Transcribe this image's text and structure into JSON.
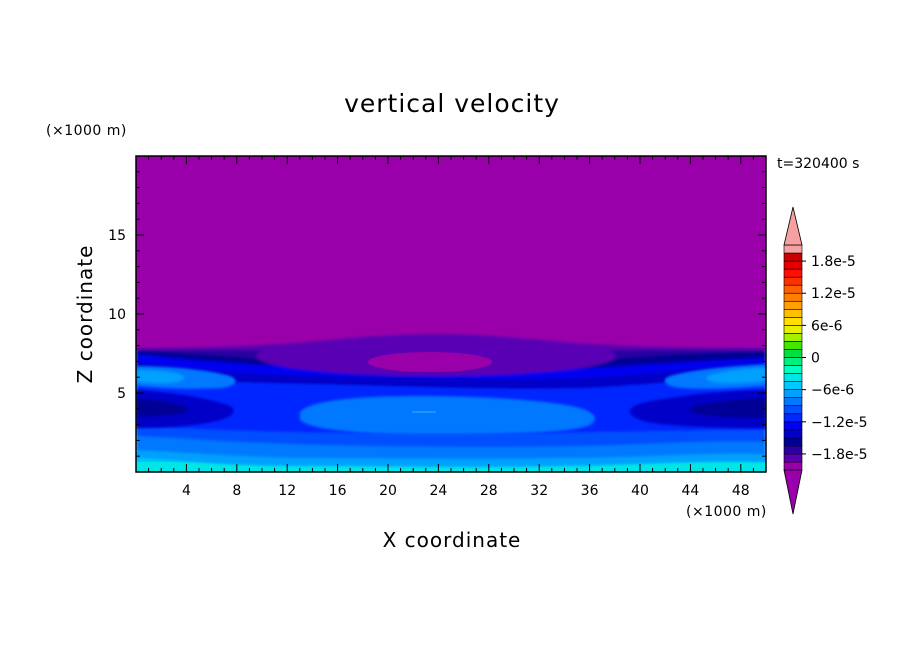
{
  "chart_data": {
    "type": "heatmap",
    "title": "vertical velocity",
    "xlabel": "X coordinate",
    "ylabel": "Z coordinate",
    "x_unit": "(×1000 m)",
    "y_unit": "(×1000 m)",
    "time_label": "t=320400 s",
    "xlim": [
      0,
      50
    ],
    "ylim": [
      0,
      20
    ],
    "x_ticks": [
      4,
      8,
      12,
      16,
      20,
      24,
      28,
      32,
      36,
      40,
      44,
      48
    ],
    "x_tick_labels": [
      "4",
      "8",
      "12",
      "16",
      "20",
      "24",
      "28",
      "32",
      "36",
      "40",
      "44",
      "48"
    ],
    "y_ticks": [
      5,
      10,
      15
    ],
    "y_tick_labels": [
      "5",
      "10",
      "15"
    ],
    "colorbar": {
      "levels": [
        -2.1e-05,
        -1.95e-05,
        -1.8e-05,
        -1.65e-05,
        -1.5e-05,
        -1.35e-05,
        -1.2e-05,
        -1.05e-05,
        -9e-06,
        -7.5e-06,
        -6e-06,
        -4.5e-06,
        -3e-06,
        -1.5e-06,
        0,
        1.5e-06,
        3e-06,
        4.5e-06,
        6e-06,
        7.5e-06,
        9e-06,
        1.05e-05,
        1.2e-05,
        1.35e-05,
        1.5e-05,
        1.65e-05,
        1.8e-05,
        1.95e-05,
        2.1e-05
      ],
      "labels": [
        {
          "value": 1.8e-05,
          "text": "1.8e-5"
        },
        {
          "value": 1.2e-05,
          "text": "1.2e-5"
        },
        {
          "value": 6e-06,
          "text": "6e-6"
        },
        {
          "value": 0,
          "text": "0"
        },
        {
          "value": -6e-06,
          "text": "-6e-6"
        },
        {
          "value": -1.2e-05,
          "text": "-1.2e-5"
        },
        {
          "value": -1.8e-05,
          "text": "-1.8e-5"
        }
      ],
      "colors": [
        "#9900aa",
        "#5a00b4",
        "#2a00a0",
        "#000096",
        "#0000c8",
        "#0000f0",
        "#0028ff",
        "#0050ff",
        "#0078ff",
        "#00a0ff",
        "#00c8ff",
        "#00e6e6",
        "#00ffc0",
        "#00f080",
        "#00e040",
        "#40e800",
        "#a0f000",
        "#e6f000",
        "#ffe000",
        "#ffc000",
        "#ffa000",
        "#ff8000",
        "#ff6000",
        "#ff3000",
        "#ff1000",
        "#e80000",
        "#cc0000",
        "#f6a0a0"
      ],
      "under_color": "#9900aa",
      "over_color": "#f6a0a0"
    },
    "bands": [
      {
        "value": -2.3e-05,
        "color": "#9900aa"
      },
      {
        "value": -1.95e-05,
        "color": "#5a00b4"
      },
      {
        "value": -1.8e-05,
        "color": "#2a00a0"
      },
      {
        "value": -1.65e-05,
        "color": "#000096"
      },
      {
        "value": -1.5e-05,
        "color": "#0000c8"
      },
      {
        "value": -1.35e-05,
        "color": "#0000f0"
      },
      {
        "value": -1.2e-05,
        "color": "#0028ff"
      },
      {
        "value": -1.05e-05,
        "color": "#0050ff"
      },
      {
        "value": -9e-06,
        "color": "#0078ff"
      },
      {
        "value": -7.5e-06,
        "color": "#00a0ff"
      },
      {
        "value": -6e-06,
        "color": "#00c8ff"
      },
      {
        "value": -4.5e-06,
        "color": "#00e6e6"
      }
    ]
  }
}
